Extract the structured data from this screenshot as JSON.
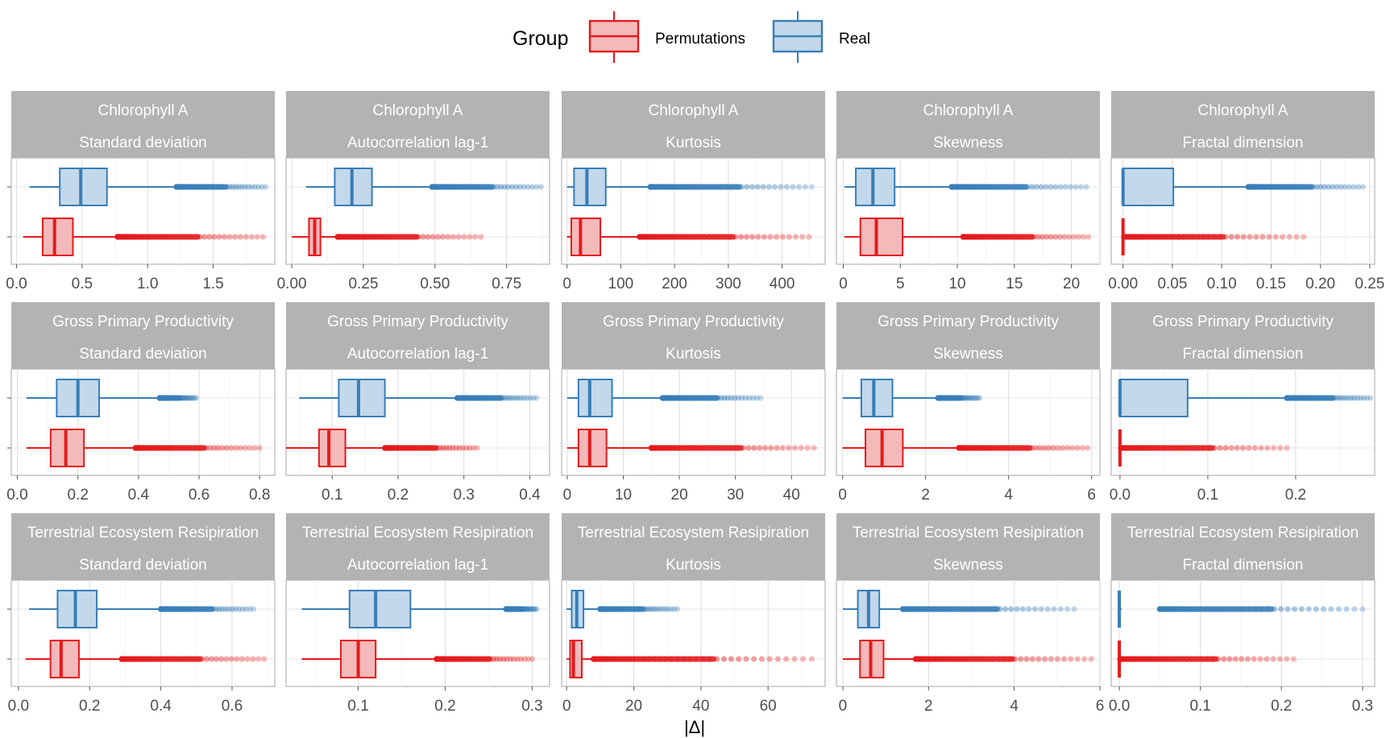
{
  "legend": {
    "title": "Group",
    "items": [
      {
        "label": "Permutations",
        "stroke": "#E41A1C",
        "fill": "#F4B9BA"
      },
      {
        "label": "Real",
        "stroke": "#377EB8",
        "fill": "#C3D8EA"
      }
    ]
  },
  "chart_data": {
    "type": "boxplot",
    "xlabel": "|Δ|",
    "ylabel": "",
    "legend_position": "top",
    "grid": true,
    "facet_rows": [
      "Chlorophyll A",
      "Gross Primary Productivity",
      "Terrestrial Ecosystem Resipiration"
    ],
    "facet_cols": [
      "Standard deviation",
      "Autocorrelation lag-1",
      "Kurtosis",
      "Skewness",
      "Fractal dimension"
    ],
    "groups": [
      "Real",
      "Permutations"
    ],
    "panels": [
      {
        "row": "Chlorophyll A",
        "col": "Standard deviation",
        "xlim": [
          -0.04,
          1.97
        ],
        "ticks": [
          "0.0",
          "0.5",
          "1.0",
          "1.5"
        ],
        "tick_values": [
          0,
          0.5,
          1.0,
          1.5
        ],
        "Real": {
          "wlo": 0.1,
          "q1": 0.33,
          "med": 0.49,
          "q3": 0.69,
          "whi": 1.22,
          "out_from": 1.22,
          "out_to": 1.9
        },
        "Permutations": {
          "wlo": 0.05,
          "q1": 0.2,
          "med": 0.29,
          "q3": 0.43,
          "whi": 0.77,
          "out_from": 0.77,
          "out_to": 1.88
        }
      },
      {
        "row": "Chlorophyll A",
        "col": "Autocorrelation lag-1",
        "xlim": [
          -0.02,
          0.9
        ],
        "ticks": [
          "0.00",
          "0.25",
          "0.50",
          "0.75"
        ],
        "tick_values": [
          0,
          0.25,
          0.5,
          0.75
        ],
        "Real": {
          "wlo": 0.05,
          "q1": 0.15,
          "med": 0.21,
          "q3": 0.28,
          "whi": 0.49,
          "out_from": 0.49,
          "out_to": 0.87
        },
        "Permutations": {
          "wlo": 0.0,
          "q1": 0.06,
          "med": 0.08,
          "q3": 0.1,
          "whi": 0.16,
          "out_from": 0.16,
          "out_to": 0.66
        }
      },
      {
        "row": "Chlorophyll A",
        "col": "Kurtosis",
        "xlim": [
          -10,
          480
        ],
        "ticks": [
          "0",
          "100",
          "200",
          "300",
          "400"
        ],
        "tick_values": [
          0,
          100,
          200,
          300,
          400
        ],
        "Real": {
          "wlo": 0,
          "q1": 13,
          "med": 37,
          "q3": 72,
          "whi": 155,
          "out_from": 155,
          "out_to": 455
        },
        "Permutations": {
          "wlo": 0,
          "q1": 8,
          "med": 25,
          "q3": 62,
          "whi": 135,
          "out_from": 135,
          "out_to": 450
        }
      },
      {
        "row": "Chlorophyll A",
        "col": "Skewness",
        "xlim": [
          -0.6,
          22.5
        ],
        "ticks": [
          "0",
          "5",
          "10",
          "15",
          "20"
        ],
        "tick_values": [
          0,
          5,
          10,
          15,
          20
        ],
        "Real": {
          "wlo": 0.1,
          "q1": 1.1,
          "med": 2.6,
          "q3": 4.5,
          "whi": 9.5,
          "out_from": 9.5,
          "out_to": 21.3
        },
        "Permutations": {
          "wlo": 0.1,
          "q1": 1.5,
          "med": 2.9,
          "q3": 5.2,
          "whi": 10.5,
          "out_from": 10.5,
          "out_to": 21.5
        }
      },
      {
        "row": "Chlorophyll A",
        "col": "Fractal dimension",
        "xlim": [
          -0.012,
          0.255
        ],
        "ticks": [
          "0.00",
          "0.05",
          "0.10",
          "0.15",
          "0.20",
          "0.25"
        ],
        "tick_values": [
          0,
          0.05,
          0.1,
          0.15,
          0.2,
          0.25
        ],
        "Real": {
          "wlo": 0,
          "q1": 0,
          "med": 0,
          "q3": 0.051,
          "whi": 0.127,
          "out_from": 0.127,
          "out_to": 0.243
        },
        "Permutations": {
          "wlo": 0,
          "q1": 0,
          "med": 0,
          "q3": 0,
          "whi": 0,
          "out_from": 0.001,
          "out_to": 0.183
        }
      },
      {
        "row": "Gross Primary Productivity",
        "col": "Standard deviation",
        "xlim": [
          -0.02,
          0.85
        ],
        "ticks": [
          "0.0",
          "0.2",
          "0.4",
          "0.6",
          "0.8"
        ],
        "tick_values": [
          0,
          0.2,
          0.4,
          0.6,
          0.8
        ],
        "Real": {
          "wlo": 0.03,
          "q1": 0.13,
          "med": 0.2,
          "q3": 0.27,
          "whi": 0.47,
          "out_from": 0.47,
          "out_to": 0.59
        },
        "Permutations": {
          "wlo": 0.03,
          "q1": 0.11,
          "med": 0.16,
          "q3": 0.22,
          "whi": 0.39,
          "out_from": 0.39,
          "out_to": 0.8
        }
      },
      {
        "row": "Gross Primary Productivity",
        "col": "Autocorrelation lag-1",
        "xlim": [
          0.03,
          0.43
        ],
        "ticks": [
          "0.1",
          "0.2",
          "0.3",
          "0.4"
        ],
        "tick_values": [
          0.1,
          0.2,
          0.3,
          0.4
        ],
        "Real": {
          "wlo": 0.05,
          "q1": 0.11,
          "med": 0.14,
          "q3": 0.18,
          "whi": 0.29,
          "out_from": 0.29,
          "out_to": 0.41
        },
        "Permutations": {
          "wlo": 0.03,
          "q1": 0.08,
          "med": 0.095,
          "q3": 0.12,
          "whi": 0.18,
          "out_from": 0.18,
          "out_to": 0.32
        }
      },
      {
        "row": "Gross Primary Productivity",
        "col": "Kurtosis",
        "xlim": [
          -1,
          46
        ],
        "ticks": [
          "0",
          "10",
          "20",
          "30",
          "40"
        ],
        "tick_values": [
          0,
          10,
          20,
          30,
          40
        ],
        "Real": {
          "wlo": 0,
          "q1": 2,
          "med": 4,
          "q3": 8,
          "whi": 17,
          "out_from": 17,
          "out_to": 34.5
        },
        "Permutations": {
          "wlo": 0,
          "q1": 2,
          "med": 4,
          "q3": 7,
          "whi": 15,
          "out_from": 15,
          "out_to": 44
        }
      },
      {
        "row": "Gross Primary Productivity",
        "col": "Skewness",
        "xlim": [
          -0.15,
          6.2
        ],
        "ticks": [
          "0",
          "2",
          "4",
          "6"
        ],
        "tick_values": [
          0,
          2,
          4,
          6
        ],
        "Real": {
          "wlo": 0,
          "q1": 0.45,
          "med": 0.75,
          "q3": 1.2,
          "whi": 2.3,
          "out_from": 2.3,
          "out_to": 3.3
        },
        "Permutations": {
          "wlo": 0,
          "q1": 0.55,
          "med": 0.95,
          "q3": 1.45,
          "whi": 2.8,
          "out_from": 2.8,
          "out_to": 5.9
        }
      },
      {
        "row": "Gross Primary Productivity",
        "col": "Fractal dimension",
        "xlim": [
          -0.01,
          0.29
        ],
        "ticks": [
          "0.0",
          "0.1",
          "0.2"
        ],
        "tick_values": [
          0,
          0.1,
          0.2
        ],
        "Real": {
          "wlo": 0,
          "q1": 0,
          "med": 0,
          "q3": 0.077,
          "whi": 0.19,
          "out_from": 0.19,
          "out_to": 0.285
        },
        "Permutations": {
          "wlo": 0,
          "q1": 0,
          "med": 0,
          "q3": 0,
          "whi": 0,
          "out_from": 0.001,
          "out_to": 0.19
        }
      },
      {
        "row": "Terrestrial Ecosystem Resipiration",
        "col": "Standard deviation",
        "xlim": [
          -0.02,
          0.72
        ],
        "ticks": [
          "0.0",
          "0.2",
          "0.4",
          "0.6"
        ],
        "tick_values": [
          0,
          0.2,
          0.4,
          0.6
        ],
        "Real": {
          "wlo": 0.03,
          "q1": 0.11,
          "med": 0.16,
          "q3": 0.22,
          "whi": 0.4,
          "out_from": 0.4,
          "out_to": 0.66
        },
        "Permutations": {
          "wlo": 0.02,
          "q1": 0.09,
          "med": 0.12,
          "q3": 0.17,
          "whi": 0.29,
          "out_from": 0.29,
          "out_to": 0.69
        }
      },
      {
        "row": "Terrestrial Ecosystem Resipiration",
        "col": "Autocorrelation lag-1",
        "xlim": [
          0.017,
          0.32
        ],
        "ticks": [
          "0.1",
          "0.2",
          "0.3"
        ],
        "tick_values": [
          0.1,
          0.2,
          0.3
        ],
        "Real": {
          "wlo": 0.035,
          "q1": 0.09,
          "med": 0.12,
          "q3": 0.16,
          "whi": 0.27,
          "out_from": 0.27,
          "out_to": 0.305
        },
        "Permutations": {
          "wlo": 0.035,
          "q1": 0.08,
          "med": 0.1,
          "q3": 0.12,
          "whi": 0.19,
          "out_from": 0.19,
          "out_to": 0.3
        }
      },
      {
        "row": "Terrestrial Ecosystem Resipiration",
        "col": "Kurtosis",
        "xlim": [
          -1.5,
          77
        ],
        "ticks": [
          "0",
          "20",
          "40",
          "60"
        ],
        "tick_values": [
          0,
          20,
          40,
          60
        ],
        "Real": {
          "wlo": 0,
          "q1": 1.5,
          "med": 3,
          "q3": 5,
          "whi": 10,
          "out_from": 10,
          "out_to": 33
        },
        "Permutations": {
          "wlo": 0,
          "q1": 1,
          "med": 2,
          "q3": 4.5,
          "whi": 8,
          "out_from": 8,
          "out_to": 73
        }
      },
      {
        "row": "Terrestrial Ecosystem Resipiration",
        "col": "Skewness",
        "xlim": [
          -0.15,
          6.0
        ],
        "ticks": [
          "0",
          "2",
          "4",
          "6"
        ],
        "tick_values": [
          0,
          2,
          4,
          6
        ],
        "Real": {
          "wlo": 0,
          "q1": 0.35,
          "med": 0.6,
          "q3": 0.85,
          "whi": 1.4,
          "out_from": 1.4,
          "out_to": 5.4
        },
        "Permutations": {
          "wlo": 0,
          "q1": 0.4,
          "med": 0.65,
          "q3": 0.95,
          "whi": 1.7,
          "out_from": 1.7,
          "out_to": 5.8
        }
      },
      {
        "row": "Terrestrial Ecosystem Resipiration",
        "col": "Fractal dimension",
        "xlim": [
          -0.01,
          0.315
        ],
        "ticks": [
          "0.0",
          "0.1",
          "0.2",
          "0.3"
        ],
        "tick_values": [
          0,
          0.1,
          0.2,
          0.3
        ],
        "Real": {
          "wlo": 0,
          "q1": 0,
          "med": 0,
          "q3": 0,
          "whi": 0.003,
          "out_from": 0.05,
          "out_to": 0.3
        },
        "Permutations": {
          "wlo": 0,
          "q1": 0,
          "med": 0,
          "q3": 0,
          "whi": 0,
          "out_from": 0.001,
          "out_to": 0.215
        }
      }
    ]
  }
}
